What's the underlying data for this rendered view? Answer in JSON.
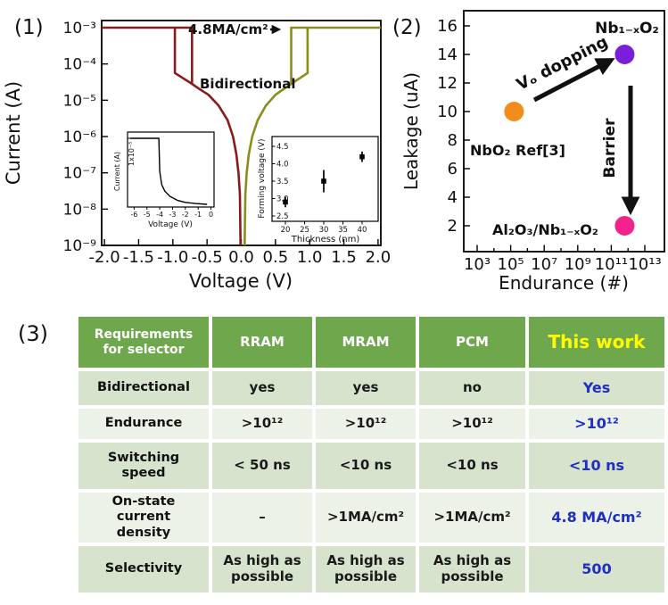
{
  "panel_labels": {
    "p1": "(1)",
    "p2": "(2)",
    "p3": "(3)"
  },
  "chart_data": [
    {
      "id": "iv_main",
      "type": "line",
      "xlabel": "Voltage (V)",
      "ylabel": "Current (A)",
      "xtick_values": [
        -2.0,
        -1.5,
        -1.0,
        -0.5,
        0.0,
        0.5,
        1.0,
        1.5,
        2.0
      ],
      "xtick_labels": [
        "-2.0",
        "-1.5",
        "-1.0",
        "-0.5",
        "0.0",
        "0.5",
        "1.0",
        "1.5",
        "2.0"
      ],
      "ytick_exponents": [
        -3,
        -4,
        -5,
        -6,
        -7,
        -8,
        -9
      ],
      "ytick_labels": [
        "10⁻³",
        "10⁻⁴",
        "10⁻⁵",
        "10⁻⁶",
        "10⁻⁷",
        "10⁻⁸",
        "10⁻⁹"
      ],
      "annotations": {
        "current_density": "4.8MA/cm²",
        "bidirectional": "Bidirectional"
      },
      "series": [
        {
          "name": "negative sweep",
          "color": "#8B1B1B",
          "branches": [
            [
              [
                -0.01,
                -9
              ],
              [
                -0.02,
                -7.6
              ],
              [
                -0.04,
                -7.0
              ],
              [
                -0.07,
                -6.5
              ],
              [
                -0.12,
                -6.0
              ],
              [
                -0.2,
                -5.55
              ],
              [
                -0.33,
                -5.15
              ],
              [
                -0.48,
                -4.85
              ],
              [
                -0.62,
                -4.68
              ],
              [
                -0.72,
                -4.55
              ],
              [
                -0.72,
                -3.0
              ],
              [
                -2.04,
                -3.0
              ]
            ],
            [
              [
                -0.97,
                -3.0
              ],
              [
                -0.97,
                -4.25
              ],
              [
                -0.72,
                -4.55
              ]
            ]
          ]
        },
        {
          "name": "positive sweep",
          "color": "#8C8C1A",
          "branches": [
            [
              [
                0.05,
                -9
              ],
              [
                0.06,
                -7.6
              ],
              [
                0.08,
                -7.0
              ],
              [
                0.11,
                -6.5
              ],
              [
                0.16,
                -6.0
              ],
              [
                0.24,
                -5.55
              ],
              [
                0.36,
                -5.15
              ],
              [
                0.5,
                -4.85
              ],
              [
                0.63,
                -4.68
              ],
              [
                0.73,
                -4.55
              ],
              [
                0.73,
                -3.0
              ],
              [
                2.04,
                -3.0
              ]
            ],
            [
              [
                0.97,
                -3.0
              ],
              [
                0.97,
                -4.25
              ],
              [
                0.73,
                -4.55
              ]
            ]
          ]
        }
      ]
    },
    {
      "id": "iv_inset",
      "type": "line",
      "xlabel": "Voltage (V)",
      "ylabel": "Current (A)",
      "ytop_label": "1x10⁻⁵",
      "xtick_values": [
        -6,
        -5,
        -4,
        -3,
        -2,
        -1,
        0
      ],
      "xtick_labels": [
        "-6",
        "-5",
        "-4",
        "-3",
        "-2",
        "-1",
        "0"
      ],
      "curve": [
        [
          -6.3,
          1.0
        ],
        [
          -4.07,
          1.0
        ],
        [
          -4.0,
          0.5
        ],
        [
          -3.85,
          0.3
        ],
        [
          -3.6,
          0.2
        ],
        [
          -3.2,
          0.12
        ],
        [
          -2.6,
          0.06
        ],
        [
          -2.0,
          0.03
        ],
        [
          -1.2,
          0.012
        ],
        [
          -0.3,
          0.0
        ]
      ]
    },
    {
      "id": "forming_inset",
      "type": "scatter",
      "xlabel": "Thickness (nm)",
      "ylabel": "Forming voltage (V)",
      "xticks": [
        20,
        25,
        30,
        35,
        40
      ],
      "ytick_labels": [
        "2.5",
        "3.0",
        "3.5",
        "4.0",
        "4.5"
      ],
      "points": [
        {
          "x": 20,
          "y": 2.9,
          "err": 0.15
        },
        {
          "x": 30,
          "y": 3.5,
          "err": 0.32
        },
        {
          "x": 40,
          "y": 4.2,
          "err": 0.15
        }
      ]
    },
    {
      "id": "leakage_scatter",
      "type": "scatter",
      "xlabel": "Endurance (#)",
      "ylabel": "Leakage (uA)",
      "ytick_values": [
        2,
        4,
        6,
        8,
        10,
        12,
        14,
        16
      ],
      "xtick_exponents": [
        3,
        5,
        7,
        9,
        11,
        13
      ],
      "xtick_labels": [
        "10³",
        "10⁵",
        "10⁷",
        "10⁹",
        "10¹¹",
        "10¹³"
      ],
      "annotation_color": "#E8000D",
      "points": [
        {
          "name": "NbO₂ Ref[3]",
          "color": "#F28C1B",
          "log_endurance": 5.2,
          "leakage": 10
        },
        {
          "name": "Nb₁₋ₓO₂",
          "color": "#7A1FD9",
          "log_endurance": 11.8,
          "leakage": 14
        },
        {
          "name": "Al₂O₃/Nb₁₋ₓO₂",
          "color": "#F2238C",
          "log_endurance": 11.8,
          "leakage": 2
        }
      ],
      "arrows": [
        {
          "label": "Vₒ dopping",
          "type": "diagonal"
        },
        {
          "label": "Barrier",
          "type": "vertical"
        }
      ]
    }
  ],
  "table": {
    "header": [
      "Requirements for selector",
      "RRAM",
      "MRAM",
      "PCM",
      "This work"
    ],
    "rows": [
      {
        "cells": [
          "Bidirectional",
          "yes",
          "yes",
          "no",
          "Yes"
        ]
      },
      {
        "cells": [
          "Endurance",
          ">10¹²",
          ">10¹²",
          ">10¹²",
          ">10¹²"
        ]
      },
      {
        "cells": [
          "Switching speed",
          "< 50 ns",
          "<10 ns",
          "<10 ns",
          "<10 ns"
        ]
      },
      {
        "cells": [
          "On-state current density",
          "–",
          ">1MA/cm²",
          ">1MA/cm²",
          "4.8 MA/cm²"
        ]
      },
      {
        "cells": [
          "Selectivity",
          "As high as possible",
          "As high as possible",
          "As high as possible",
          "500"
        ]
      }
    ],
    "colors": {
      "header_bg": "#6FA84C",
      "header_text": "#FFFFFF",
      "this_work_text": "#FFFF00",
      "row_bg_a": "#D7E3CD",
      "row_bg_b": "#EDF2E8",
      "value_text": "#1A1A1A",
      "highlight_text": "#1F2FC0"
    }
  }
}
